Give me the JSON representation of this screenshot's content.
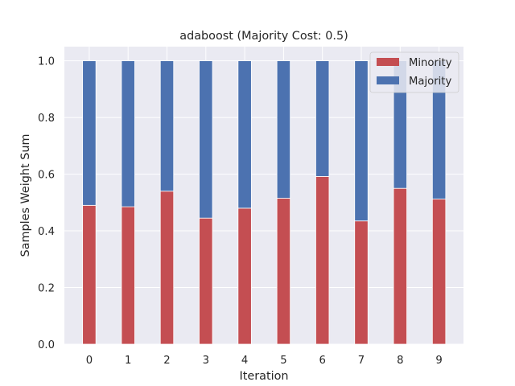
{
  "chart_data": {
    "type": "bar",
    "stacked": true,
    "title": "adaboost (Majority Cost: 0.5)",
    "xlabel": "Iteration",
    "ylabel": "Samples Weight Sum",
    "categories": [
      "0",
      "1",
      "2",
      "3",
      "4",
      "5",
      "6",
      "7",
      "8",
      "9"
    ],
    "series": [
      {
        "name": "Minority",
        "color": "#c44e52",
        "values": [
          0.49,
          0.485,
          0.54,
          0.445,
          0.48,
          0.515,
          0.592,
          0.435,
          0.55,
          0.512
        ]
      },
      {
        "name": "Majority",
        "color": "#4c72b0",
        "values": [
          0.51,
          0.515,
          0.46,
          0.555,
          0.52,
          0.485,
          0.408,
          0.565,
          0.45,
          0.488
        ]
      }
    ],
    "ylim": [
      0,
      1.05
    ],
    "yticks": [
      "0.0",
      "0.2",
      "0.4",
      "0.6",
      "0.8",
      "1.0"
    ],
    "ytick_values": [
      0,
      0.2,
      0.4,
      0.6,
      0.8,
      1.0
    ],
    "grid": true,
    "legend_position": "top-right"
  }
}
